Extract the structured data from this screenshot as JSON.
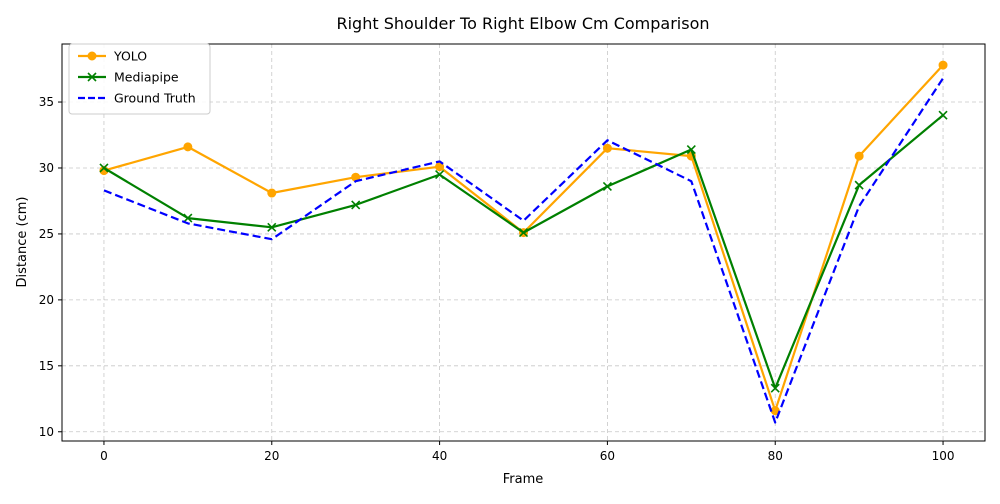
{
  "chart_data": {
    "type": "line",
    "title": "Right Shoulder To Right Elbow Cm Comparison",
    "xlabel": "Frame",
    "ylabel": "Distance (cm)",
    "xlim": [
      -5,
      105
    ],
    "ylim": [
      9.3,
      39.4
    ],
    "xticks": [
      0,
      20,
      40,
      60,
      80,
      100
    ],
    "yticks": [
      10,
      15,
      20,
      25,
      30,
      35
    ],
    "grid": true,
    "legend_position": "top-left",
    "x": [
      0,
      10,
      20,
      30,
      40,
      50,
      60,
      70,
      80,
      90,
      100
    ],
    "series": [
      {
        "name": "YOLO",
        "color": "#ffa500",
        "marker": "circle",
        "dash": "solid",
        "values": [
          29.8,
          31.6,
          28.1,
          29.3,
          30.1,
          25.1,
          31.5,
          30.9,
          11.6,
          30.9,
          37.8
        ]
      },
      {
        "name": "Mediapipe",
        "color": "#008000",
        "marker": "x",
        "dash": "solid",
        "values": [
          30.0,
          26.2,
          25.5,
          27.2,
          29.5,
          25.1,
          28.6,
          31.4,
          13.3,
          28.7,
          34.0
        ]
      },
      {
        "name": "Ground Truth",
        "color": "#0000ff",
        "marker": "none",
        "dash": "dashed",
        "values": [
          28.3,
          25.8,
          24.6,
          29.0,
          30.5,
          26.0,
          32.1,
          29.0,
          10.7,
          27.1,
          36.8
        ]
      }
    ]
  }
}
